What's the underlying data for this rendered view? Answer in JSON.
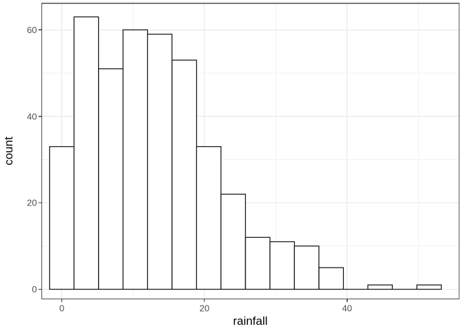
{
  "figure": {
    "background": "#ffffff"
  },
  "chart_data": {
    "type": "bar",
    "subtype": "histogram",
    "title": "",
    "xlabel": "rainfall",
    "ylabel": "count",
    "bin_width": 3.433,
    "bin_centers": [
      0,
      3.43,
      6.87,
      10.3,
      13.73,
      17.17,
      20.6,
      24.03,
      27.47,
      30.9,
      34.33,
      37.77,
      41.2,
      44.63,
      48.07,
      51.5
    ],
    "counts": [
      33,
      63,
      51,
      60,
      59,
      53,
      33,
      22,
      12,
      11,
      10,
      5,
      0,
      1,
      0,
      1
    ],
    "x_ticks": [
      0,
      20,
      40
    ],
    "x_tick_labels": [
      "0",
      "20",
      "40"
    ],
    "x_minor_gridlines": [
      10,
      30,
      50
    ],
    "y_ticks": [
      0,
      20,
      40,
      60
    ],
    "y_tick_labels": [
      "0",
      "20",
      "40",
      "60"
    ],
    "y_minor_gridlines": [
      10,
      30,
      50
    ],
    "x_range_shown": [
      -2.8,
      55.7
    ],
    "y_range_shown": [
      -2.4,
      66.2
    ],
    "grid": true,
    "legend_position": "none",
    "colors": {
      "bar_fill": "#ffffff",
      "bar_stroke": "#1a1a1a",
      "grid_major": "#e5e5e5",
      "grid_minor": "#f1f1f1",
      "panel_border": "#4d4d4d",
      "tick_mark": "#333333",
      "tick_label": "#4d4d4d",
      "axis_title": "#000000",
      "panel_background": "#ffffff"
    }
  }
}
